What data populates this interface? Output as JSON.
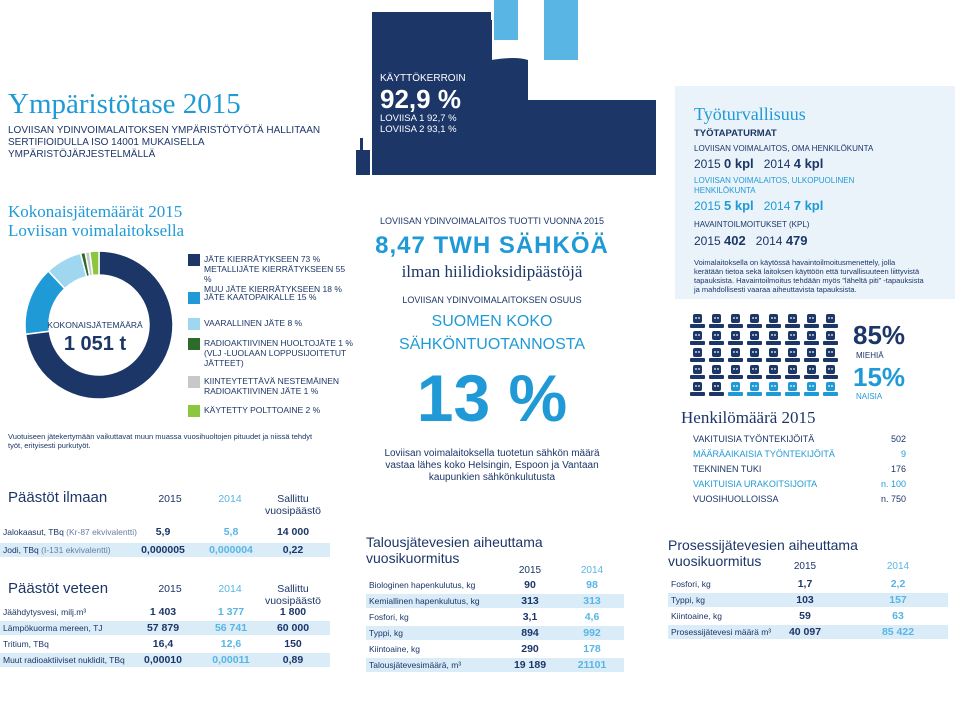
{
  "header": {
    "title": "Ympäristötase 2015",
    "subtitle": "LOVIISAN YDINVOIMALAITOKSEN YMPÄRISTÖTYÖTÄ HALLITAAN SERTIFIOIDULLA ISO 14001 MUKAISELLA YMPÄRISTÖJÄRJESTELMÄLLÄ"
  },
  "waste": {
    "title_line1": "Kokonaisjätemäärät 2015",
    "title_line2": "Loviisan voimalaitoksella",
    "total_label": "KOKONAISJÄTEMÄÄRÄ",
    "total_value": "1 051 t",
    "legend": [
      {
        "lines": [
          "JÄTE KIERRÄTYKSEEN 73 %",
          "METALLIJÄTE KIERRÄTYKSEEN 55 %",
          "MUU JÄTE KIERRÄTYKSEEN 18 %"
        ],
        "color": "#1c3668"
      },
      {
        "lines": [
          "JÄTE KAATOPAIKALLE 15 %"
        ],
        "color": "#1f9ad6"
      },
      {
        "lines": [
          "VAARALLINEN JÄTE 8 %"
        ],
        "color": "#9fd6f0"
      },
      {
        "lines": [
          "RADIOAKTIIVINEN HUOLTOJÄTE 1 %",
          "(VLJ -LUOLAAN LOPPUSIJOITETUT",
          "JÄTTEET)"
        ],
        "color": "#2e6a2a"
      },
      {
        "lines": [
          "KIINTEYTETTÄVÄ NESTEMÄINEN",
          "RADIOAKTIIVINEN JÄTE 1 %"
        ],
        "color": "#c8c8c8"
      },
      {
        "lines": [
          "KÄYTETTY POLTTOAINE 2 %"
        ],
        "color": "#8cc63e"
      }
    ],
    "note": "Vuotuiseen jätekertymään vaikuttavat muun muassa vuosihuoltojen pituudet ja niissä tehdyt työt, erityisesti purkutyöt."
  },
  "air": {
    "title": "Päästöt ilmaan",
    "col_2015": "2015",
    "col_2014": "2014",
    "col_allowed_1": "Sallittu",
    "col_allowed_2": "vuosipäästö",
    "rows": [
      {
        "label": "Jalokaasut, TBq",
        "extra": " (Kr-87 ekvivalentti)",
        "v2015": "5,9",
        "v2014": "5,8",
        "allowed": "14 000"
      },
      {
        "label": "Jodi, TBq",
        "extra": " (I-131 ekvivalentti)",
        "v2015": "0,000005",
        "v2014": "0,000004",
        "allowed": "0,22"
      }
    ]
  },
  "water": {
    "title": "Päästöt veteen",
    "col_2015": "2015",
    "col_2014": "2014",
    "col_allowed_1": "Sallittu",
    "col_allowed_2": "vuosipäästö",
    "rows": [
      {
        "label": "Jäähdytysvesi, milj.m³",
        "v2015": "1 403",
        "v2014": "1 377",
        "allowed": "1 800"
      },
      {
        "label": "Lämpökuorma mereen, TJ",
        "v2015": "57 879",
        "v2014": "56 741",
        "allowed": "60 000"
      },
      {
        "label": "Tritium, TBq",
        "v2015": "16,4",
        "v2014": "12,6",
        "allowed": "150"
      },
      {
        "label": "Muut radioaktiiviset nuklidit, TBq",
        "v2015": "0,00010",
        "v2014": "0,00011",
        "allowed": "0,89"
      }
    ]
  },
  "capacity": {
    "label": "KÄYTTÖKERROIN",
    "value": "92,9 %",
    "line1": "LOVIISA 1  92,7 %",
    "line2": "LOVIISA 2  93,1 %"
  },
  "production": {
    "label": "LOVIISAN YDINVOIMALAITOS TUOTTI VUONNA 2015",
    "value": "8,47 TWH SÄHKÖÄ",
    "sub": "ilman hiilidioksidipäästöjä",
    "share_label": "LOVIISAN YDINVOIMALAITOKSEN OSUUS",
    "share_text_1": "SUOMEN KOKO",
    "share_text_2": "SÄHKÖNTUOTANNOSTA",
    "share_pct": "13 %",
    "note": "Loviisan voimalaitoksella tuotetun sähkön määrä vastaa lähes koko Helsingin, Espoon ja Vantaan kaupunkien sähkönkulutusta"
  },
  "sanitary": {
    "title_1": "Talousjätevesien aiheuttama",
    "title_2": "vuosikuormitus",
    "col_2015": "2015",
    "col_2014": "2014",
    "rows": [
      {
        "label": "Biologinen hapenkulutus, kg",
        "v2015": "90",
        "v2014": "98"
      },
      {
        "label": "Kemiallinen hapenkulutus, kg",
        "v2015": "313",
        "v2014": "313"
      },
      {
        "label": "Fosfori, kg",
        "v2015": "3,1",
        "v2014": "4,6"
      },
      {
        "label": "Typpi, kg",
        "v2015": "894",
        "v2014": "992"
      },
      {
        "label": "Kiintoaine, kg",
        "v2015": "290",
        "v2014": "178"
      },
      {
        "label": "Talousjätevesimäärä, m³",
        "v2015": "19 189",
        "v2014": "21101"
      }
    ]
  },
  "process": {
    "title_1": "Prosessijätevesien aiheuttama",
    "title_2": "vuosikuormitus",
    "col_2015": "2015",
    "col_2014": "2014",
    "rows": [
      {
        "label": "Fosfori, kg",
        "v2015": "1,7",
        "v2014": "2,2"
      },
      {
        "label": "Typpi, kg",
        "v2015": "103",
        "v2014": "157"
      },
      {
        "label": "Kiintoaine, kg",
        "v2015": "59",
        "v2014": "63"
      },
      {
        "label": "Prosessijätevesi määrä m³",
        "v2015": "40 097",
        "v2014": "85 422"
      }
    ]
  },
  "safety": {
    "title": "Työturvallisuus",
    "accidents_head": "TYÖTAPATURMAT",
    "own_label": "LOVIISAN VOIMALAITOS, OMA HENKILÖKUNTA",
    "own_2015_year": "2015",
    "own_2015_val": "0 kpl",
    "own_2014_year": "2014",
    "own_2014_val": "4 kpl",
    "ext_label_1": "LOVIISAN VOIMALAITOS, ULKOPUOLINEN",
    "ext_label_2": "HENKILÖKUNTA",
    "ext_2015_year": "2015",
    "ext_2015_val": "5 kpl",
    "ext_2014_year": "2014",
    "ext_2014_val": "7 kpl",
    "obs_label": "HAVAINTOILMOITUKSET (kpl)",
    "obs_2015_year": "2015",
    "obs_2015_val": "402",
    "obs_2014_year": "2014",
    "obs_2014_val": "479",
    "note": "Voimalaitoksella on käytössä havaintoilmoitusmenettely, jolla kerätään tietoa sekä laitoksen käyttöön että turvallisuuteen liittyvistä tapauksista. Havaintoilmoitus tehdään myös ”läheltä piti” -tapauksista ja mahdollisesti vaaraa aiheuttavista tapauksista."
  },
  "gender": {
    "men_pct": "85%",
    "men_label": "MIEHIÄ",
    "women_pct": "15%",
    "women_label": "NAISIA",
    "men_share": 0.85
  },
  "staff": {
    "title": "Henkilömäärä 2015",
    "rows": [
      {
        "label": "VAKITUISIA TYÖNTEKIJÖITÄ",
        "value": "502",
        "style": "n"
      },
      {
        "label": "MÄÄRÄAIKAISIA TYÖNTEKIJÖITÄ",
        "value": "9",
        "style": "b"
      },
      {
        "label": "TEKNINEN TUKI",
        "value": "176",
        "style": "n"
      },
      {
        "label": "VAKITUISIA URAKOITSIJOITA",
        "value": "n. 100",
        "style": "b"
      },
      {
        "label": "VUOSIHUOLLOISSA",
        "value": "n. 750",
        "style": "n"
      }
    ]
  },
  "chart_data": {
    "type": "pie",
    "categories": [
      "JÄTE KIERRÄTYKSEEN",
      "JÄTE KAATOPAIKALLE",
      "VAARALLINEN JÄTE",
      "RADIOAKTIIVINEN HUOLTOJÄTE",
      "KIINTEYTETTÄVÄ NESTEMÄINEN RADIOAKTIIVINEN JÄTE",
      "KÄYTETTY POLTTOAINE"
    ],
    "values": [
      73,
      15,
      8,
      1,
      1,
      2
    ],
    "recycling_breakdown": {
      "categories": [
        "METALLIJÄTE KIERRÄTYKSEEN",
        "MUU JÄTE KIERRÄTYKSEEN"
      ],
      "values": [
        55,
        18
      ]
    },
    "colors": [
      "#1c3668",
      "#1f9ad6",
      "#9fd6f0",
      "#2e6a2a",
      "#c8c8c8",
      "#8cc63e"
    ]
  }
}
